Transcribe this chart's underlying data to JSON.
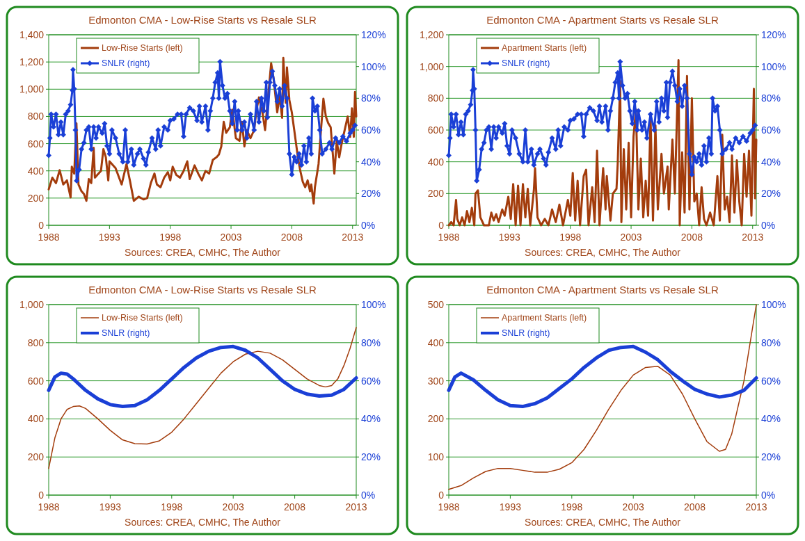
{
  "chart_data": [
    {
      "type": "line",
      "title": "Edmonton CMA - Low-Rise Starts vs Resale SLR",
      "annotations": [
        "Sources: CREA, CMHC, The Author"
      ],
      "xlim": [
        1988,
        2013.3
      ],
      "xticks": [
        1988,
        1993,
        1998,
        2003,
        2008,
        2013
      ],
      "ylim": [
        0,
        1400
      ],
      "yticks": [
        0,
        200,
        400,
        600,
        800,
        {
          "value": 1000,
          "label": "1,000"
        },
        {
          "value": 1200,
          "label": "1,200"
        },
        {
          "value": 1400,
          "label": "1,400"
        }
      ],
      "y2lim": [
        0,
        120
      ],
      "y2ticks": [
        {
          "value": 0,
          "label": "0%"
        },
        {
          "value": 20,
          "label": "20%"
        },
        {
          "value": 40,
          "label": "40%"
        },
        {
          "value": 60,
          "label": "60%"
        },
        {
          "value": 80,
          "label": "80%"
        },
        {
          "value": 100,
          "label": "100%"
        },
        {
          "value": 120,
          "label": "120%"
        }
      ],
      "grid": "y",
      "legend": "top left",
      "series": [
        {
          "name": "Low-Rise Starts (left)",
          "color": "#a33c0c",
          "marker": "none",
          "x": [
            1988.0,
            1988.3,
            1988.6,
            1988.9,
            1989.2,
            1989.5,
            1989.8,
            1989.9,
            1990.1,
            1990.28,
            1990.45,
            1990.7,
            1990.9,
            1991.1,
            1991.3,
            1991.5,
            1991.7,
            1991.8,
            1992.0,
            1992.3,
            1992.5,
            1992.7,
            1992.9,
            1993.0,
            1993.5,
            1994.0,
            1994.4,
            1994.7,
            1995.0,
            1995.4,
            1995.8,
            1996.1,
            1996.4,
            1996.7,
            1996.9,
            1997.2,
            1997.5,
            1997.8,
            1998.0,
            1998.2,
            1998.5,
            1998.8,
            1999.1,
            1999.4,
            1999.6,
            2000.0,
            2000.3,
            2000.6,
            2000.9,
            2001.2,
            2001.5,
            2001.8,
            2002.0,
            2002.2,
            2002.4,
            2002.6,
            2002.9,
            2003.1,
            2003.4,
            2003.7,
            2003.9,
            2004.1,
            2004.3,
            2004.6,
            2004.9,
            2005.1,
            2005.3,
            2005.6,
            2005.8,
            2006.0,
            2006.3,
            2006.5,
            2006.8,
            2007.0,
            2007.2,
            2007.3,
            2007.5,
            2007.6,
            2007.8,
            2008.0,
            2008.2,
            2008.5,
            2008.7,
            2008.9,
            2009.1,
            2009.3,
            2009.5,
            2009.6,
            2009.8,
            2009.9,
            2010.2,
            2010.4,
            2010.6,
            2010.8,
            2011.0,
            2011.2,
            2011.5,
            2011.7,
            2011.9,
            2012.1,
            2012.3,
            2012.6,
            2012.8,
            2012.95,
            2013.1,
            2013.2,
            2013.3
          ],
          "values": [
            264,
            350,
            310,
            405,
            300,
            330,
            205,
            430,
            380,
            750,
            300,
            250,
            230,
            180,
            340,
            310,
            570,
            350,
            370,
            400,
            560,
            500,
            330,
            470,
            420,
            300,
            450,
            320,
            180,
            210,
            190,
            200,
            310,
            380,
            300,
            280,
            350,
            390,
            330,
            430,
            370,
            350,
            400,
            470,
            340,
            440,
            380,
            330,
            400,
            380,
            480,
            500,
            520,
            580,
            760,
            680,
            720,
            850,
            640,
            620,
            760,
            580,
            700,
            640,
            700,
            850,
            940,
            820,
            700,
            890,
            1190,
            1080,
            830,
            950,
            790,
            1230,
            900,
            1160,
            920,
            830,
            700,
            500,
            400,
            320,
            280,
            330,
            250,
            300,
            160,
            280,
            450,
            700,
            930,
            800,
            750,
            720,
            380,
            620,
            500,
            600,
            680,
            800,
            650,
            860,
            650,
            980,
            800
          ]
        },
        {
          "name": "SNLR (right)",
          "color": "#1a3fd6",
          "axis": "y2",
          "marker": "diamond",
          "x": [
            1988.0,
            1988.1,
            1988.2,
            1988.4,
            1988.6,
            1988.8,
            1989.0,
            1989.2,
            1989.4,
            1989.6,
            1989.8,
            1989.95,
            1990.0,
            1990.1,
            1990.2,
            1990.3,
            1990.5,
            1990.7,
            1990.9,
            1991.1,
            1991.3,
            1991.5,
            1991.7,
            1991.9,
            1992.1,
            1992.4,
            1992.6,
            1992.8,
            1993.0,
            1993.2,
            1993.5,
            1993.8,
            1994.1,
            1994.3,
            1994.5,
            1994.8,
            1995.0,
            1995.3,
            1995.5,
            1995.8,
            1996.0,
            1996.2,
            1996.5,
            1996.8,
            1997.0,
            1997.2,
            1997.5,
            1997.8,
            1998.0,
            1998.3,
            1998.6,
            1998.9,
            1999.1,
            1999.3,
            1999.6,
            1999.9,
            2000.2,
            2000.4,
            2000.6,
            2000.9,
            2001.1,
            2001.3,
            2001.5,
            2001.7,
            2001.9,
            2002.0,
            2002.1,
            2002.3,
            2002.5,
            2002.7,
            2002.9,
            2003.1,
            2003.3,
            2003.5,
            2003.6,
            2003.9,
            2004.1,
            2004.3,
            2004.6,
            2004.9,
            2005.1,
            2005.3,
            2005.5,
            2005.7,
            2005.9,
            2006.0,
            2006.2,
            2006.4,
            2006.6,
            2006.8,
            2007.0,
            2007.2,
            2007.4,
            2007.6,
            2007.8,
            2008.0,
            2008.2,
            2008.4,
            2008.6,
            2008.8,
            2009.0,
            2009.2,
            2009.4,
            2009.6,
            2009.7,
            2009.9,
            2010.1,
            2010.3,
            2010.5,
            2010.8,
            2011.1,
            2011.3,
            2011.6,
            2011.9,
            2012.2,
            2012.5,
            2012.8,
            2013.0,
            2013.2
          ],
          "values": [
            44,
            55,
            70,
            62,
            70,
            57,
            65,
            57,
            70,
            72,
            76,
            85,
            98,
            86,
            60,
            28,
            35,
            48,
            52,
            60,
            62,
            48,
            62,
            55,
            62,
            58,
            64,
            50,
            45,
            60,
            55,
            45,
            40,
            60,
            40,
            48,
            38,
            45,
            48,
            42,
            38,
            46,
            55,
            48,
            60,
            50,
            62,
            60,
            66,
            67,
            70,
            70,
            56,
            70,
            74,
            72,
            66,
            75,
            65,
            75,
            60,
            72,
            80,
            90,
            96,
            80,
            103,
            88,
            80,
            83,
            72,
            64,
            78,
            60,
            72,
            60,
            65,
            55,
            70,
            60,
            78,
            65,
            80,
            72,
            90,
            68,
            90,
            97,
            88,
            78,
            86,
            75,
            88,
            80,
            45,
            32,
            43,
            40,
            45,
            38,
            50,
            40,
            55,
            45,
            80,
            72,
            75,
            60,
            45,
            48,
            52,
            48,
            55,
            52,
            56,
            53,
            58,
            60,
            63
          ]
        }
      ]
    },
    {
      "type": "line",
      "title": "Edmonton CMA - Apartment Starts vs Resale SLR",
      "annotations": [
        "Sources: CREA, CMHC, The Author"
      ],
      "xlim": [
        1988,
        2013.3
      ],
      "xticks": [
        1988,
        1993,
        1998,
        2003,
        2008,
        2013
      ],
      "ylim": [
        0,
        1200
      ],
      "yticks": [
        0,
        200,
        400,
        600,
        800,
        {
          "value": 1000,
          "label": "1,000"
        },
        {
          "value": 1200,
          "label": "1,200"
        }
      ],
      "y2lim": [
        0,
        120
      ],
      "y2ticks": [
        {
          "value": 0,
          "label": "0%"
        },
        {
          "value": 20,
          "label": "20%"
        },
        {
          "value": 40,
          "label": "40%"
        },
        {
          "value": 60,
          "label": "60%"
        },
        {
          "value": 80,
          "label": "80%"
        },
        {
          "value": 100,
          "label": "100%"
        },
        {
          "value": 120,
          "label": "120%"
        }
      ],
      "grid": "y",
      "legend": "top left",
      "series": [
        {
          "name": "Apartment Starts (left)",
          "color": "#a33c0c",
          "marker": "none",
          "x": [
            1988.0,
            1988.2,
            1988.4,
            1988.6,
            1988.7,
            1988.9,
            1989.1,
            1989.3,
            1989.5,
            1989.7,
            1989.9,
            1990.1,
            1990.2,
            1990.4,
            1990.6,
            1990.9,
            1991.3,
            1991.5,
            1991.7,
            1991.9,
            1992.1,
            1992.4,
            1992.6,
            1992.9,
            1993.1,
            1993.3,
            1993.5,
            1993.7,
            1993.9,
            1994.1,
            1994.3,
            1994.5,
            1994.7,
            1995.0,
            1995.1,
            1995.3,
            1995.6,
            1995.9,
            1996.2,
            1996.5,
            1996.8,
            1997.1,
            1997.4,
            1997.8,
            1998.0,
            1998.2,
            1998.4,
            1998.6,
            1998.8,
            1999.1,
            1999.3,
            1999.5,
            1999.8,
            2000.0,
            2000.2,
            2000.4,
            2000.7,
            2000.9,
            2001.0,
            2001.3,
            2001.5,
            2001.8,
            2001.9,
            2002.1,
            2002.2,
            2002.4,
            2002.6,
            2002.8,
            2003.0,
            2003.2,
            2003.4,
            2003.6,
            2003.8,
            2004.0,
            2004.2,
            2004.4,
            2004.6,
            2004.8,
            2005.0,
            2005.2,
            2005.5,
            2005.7,
            2006.0,
            2006.1,
            2006.4,
            2006.6,
            2006.9,
            2007.0,
            2007.2,
            2007.4,
            2007.6,
            2007.8,
            2008.0,
            2008.2,
            2008.4,
            2008.6,
            2008.8,
            2009.0,
            2009.2,
            2009.5,
            2009.8,
            2010.1,
            2010.3,
            2010.5,
            2010.7,
            2010.9,
            2011.1,
            2011.3,
            2011.5,
            2011.7,
            2011.9,
            2012.1,
            2012.3,
            2012.5,
            2012.7,
            2012.9,
            2013.0,
            2013.1,
            2013.2,
            2013.3
          ],
          "values": [
            0,
            20,
            0,
            160,
            40,
            0,
            50,
            0,
            90,
            20,
            110,
            0,
            200,
            220,
            50,
            0,
            0,
            80,
            30,
            70,
            20,
            100,
            60,
            180,
            40,
            260,
            0,
            250,
            0,
            260,
            50,
            230,
            0,
            220,
            360,
            50,
            0,
            40,
            0,
            100,
            20,
            130,
            0,
            160,
            60,
            330,
            30,
            280,
            0,
            310,
            350,
            0,
            240,
            20,
            470,
            0,
            360,
            100,
            310,
            30,
            200,
            230,
            390,
            910,
            20,
            480,
            100,
            520,
            50,
            560,
            730,
            100,
            420,
            50,
            280,
            60,
            680,
            30,
            630,
            100,
            450,
            200,
            370,
            100,
            540,
            200,
            1040,
            0,
            460,
            80,
            940,
            100,
            800,
            150,
            200,
            0,
            240,
            40,
            0,
            80,
            0,
            310,
            30,
            570,
            100,
            180,
            20,
            440,
            80,
            410,
            150,
            0,
            450,
            180,
            470,
            60,
            480,
            860,
            170,
            540
          ]
        },
        {
          "name": "SNLR (right)",
          "color": "#1a3fd6",
          "axis": "y2",
          "marker": "diamond",
          "x": [
            1988.0,
            1988.1,
            1988.2,
            1988.4,
            1988.6,
            1988.8,
            1989.0,
            1989.2,
            1989.4,
            1989.6,
            1989.8,
            1989.95,
            1990.0,
            1990.1,
            1990.2,
            1990.3,
            1990.5,
            1990.7,
            1990.9,
            1991.1,
            1991.3,
            1991.5,
            1991.7,
            1991.9,
            1992.1,
            1992.4,
            1992.6,
            1992.8,
            1993.0,
            1993.2,
            1993.5,
            1993.8,
            1994.1,
            1994.3,
            1994.5,
            1994.8,
            1995.0,
            1995.3,
            1995.5,
            1995.8,
            1996.0,
            1996.2,
            1996.5,
            1996.8,
            1997.0,
            1997.2,
            1997.5,
            1997.8,
            1998.0,
            1998.3,
            1998.6,
            1998.9,
            1999.1,
            1999.3,
            1999.6,
            1999.9,
            2000.2,
            2000.4,
            2000.6,
            2000.9,
            2001.1,
            2001.3,
            2001.5,
            2001.7,
            2001.9,
            2002.0,
            2002.1,
            2002.3,
            2002.5,
            2002.7,
            2002.9,
            2003.1,
            2003.3,
            2003.5,
            2003.6,
            2003.9,
            2004.1,
            2004.3,
            2004.6,
            2004.9,
            2005.1,
            2005.3,
            2005.5,
            2005.7,
            2005.9,
            2006.0,
            2006.2,
            2006.4,
            2006.6,
            2006.8,
            2007.0,
            2007.2,
            2007.4,
            2007.6,
            2007.8,
            2008.0,
            2008.2,
            2008.4,
            2008.6,
            2008.8,
            2009.0,
            2009.2,
            2009.4,
            2009.6,
            2009.7,
            2009.9,
            2010.1,
            2010.3,
            2010.5,
            2010.8,
            2011.1,
            2011.3,
            2011.6,
            2011.9,
            2012.2,
            2012.5,
            2012.8,
            2013.0,
            2013.2
          ],
          "values": [
            44,
            55,
            70,
            62,
            70,
            57,
            65,
            57,
            70,
            72,
            76,
            85,
            98,
            86,
            60,
            28,
            35,
            48,
            52,
            60,
            62,
            48,
            62,
            55,
            62,
            58,
            64,
            50,
            45,
            60,
            55,
            45,
            40,
            60,
            40,
            48,
            38,
            45,
            48,
            42,
            38,
            46,
            55,
            48,
            60,
            50,
            62,
            60,
            66,
            67,
            70,
            70,
            56,
            70,
            74,
            72,
            66,
            75,
            65,
            75,
            60,
            72,
            80,
            90,
            96,
            80,
            103,
            88,
            80,
            83,
            72,
            64,
            78,
            60,
            72,
            60,
            65,
            55,
            70,
            60,
            78,
            65,
            80,
            72,
            90,
            68,
            90,
            97,
            88,
            78,
            86,
            75,
            88,
            80,
            45,
            32,
            43,
            40,
            45,
            38,
            50,
            40,
            55,
            45,
            80,
            72,
            75,
            60,
            45,
            48,
            52,
            48,
            55,
            52,
            56,
            53,
            58,
            60,
            63
          ]
        }
      ]
    },
    {
      "type": "line",
      "title": "Edmonton CMA - Low-Rise Starts vs Resale SLR",
      "annotations": [
        "Sources: CREA, CMHC, The Author"
      ],
      "xlim": [
        1988,
        2013
      ],
      "xticks": [
        1988,
        1993,
        1998,
        2003,
        2008,
        2013
      ],
      "ylim": [
        0,
        1000
      ],
      "yticks": [
        0,
        200,
        400,
        600,
        800,
        {
          "value": 1000,
          "label": "1,000"
        }
      ],
      "y2lim": [
        0,
        100
      ],
      "y2ticks": [
        {
          "value": 0,
          "label": "0%"
        },
        {
          "value": 20,
          "label": "20%"
        },
        {
          "value": 40,
          "label": "40%"
        },
        {
          "value": 60,
          "label": "60%"
        },
        {
          "value": 80,
          "label": "80%"
        },
        {
          "value": 100,
          "label": "100%"
        }
      ],
      "grid": "y",
      "legend": "top left",
      "series": [
        {
          "name": "Low-Rise Starts (left)",
          "color": "#a33c0c",
          "x": [
            1988,
            1988.5,
            1989,
            1989.5,
            1990,
            1990.5,
            1991,
            1992,
            1993,
            1994,
            1995,
            1996,
            1997,
            1998,
            1999,
            2000,
            2001,
            2002,
            2003,
            2004,
            2005,
            2006,
            2007,
            2008,
            2009,
            2010,
            2010.5,
            2011,
            2011.5,
            2012,
            2012.5,
            2013
          ],
          "values": [
            140,
            300,
            400,
            450,
            465,
            468,
            455,
            400,
            340,
            290,
            270,
            268,
            285,
            330,
            400,
            480,
            560,
            640,
            700,
            740,
            755,
            745,
            710,
            660,
            610,
            575,
            568,
            575,
            610,
            680,
            770,
            880
          ]
        },
        {
          "name": "SNLR (right)",
          "color": "#1a3fd6",
          "axis": "y2",
          "x": [
            1988,
            1988.5,
            1989,
            1989.5,
            1990,
            1991,
            1992,
            1993,
            1994,
            1995,
            1996,
            1997,
            1998,
            1999,
            2000,
            2001,
            2002,
            2003,
            2004,
            2005,
            2006,
            2007,
            2008,
            2009,
            2010,
            2011,
            2012,
            2013
          ],
          "values": [
            55,
            62,
            64,
            63.5,
            61,
            55,
            50.5,
            47.5,
            46.5,
            47,
            50,
            55,
            61,
            67,
            72,
            75.5,
            77.5,
            78,
            76,
            72,
            66,
            60,
            55.5,
            53,
            52,
            52.5,
            55.5,
            61.5
          ]
        }
      ]
    },
    {
      "type": "line",
      "title": "Edmonton CMA - Apartment Starts vs Resale SLR",
      "annotations": [
        "Sources: CREA, CMHC, The Author"
      ],
      "xlim": [
        1988,
        2013
      ],
      "xticks": [
        1988,
        1993,
        1998,
        2003,
        2008,
        2013
      ],
      "ylim": [
        0,
        500
      ],
      "yticks": [
        0,
        100,
        200,
        300,
        400,
        500
      ],
      "y2lim": [
        0,
        100
      ],
      "y2ticks": [
        {
          "value": 0,
          "label": "0%"
        },
        {
          "value": 20,
          "label": "20%"
        },
        {
          "value": 40,
          "label": "40%"
        },
        {
          "value": 60,
          "label": "60%"
        },
        {
          "value": 80,
          "label": "80%"
        },
        {
          "value": 100,
          "label": "100%"
        }
      ],
      "grid": "y",
      "legend": "top left",
      "series": [
        {
          "name": "Apartment Starts (left)",
          "color": "#a33c0c",
          "x": [
            1988,
            1989,
            1990,
            1991,
            1992,
            1993,
            1994,
            1995,
            1996,
            1997,
            1998,
            1999,
            2000,
            2001,
            2002,
            2003,
            2004,
            2005,
            2006,
            2007,
            2008,
            2009,
            2010,
            2010.5,
            2011,
            2012,
            2013
          ],
          "values": [
            15,
            25,
            45,
            62,
            70,
            70,
            65,
            60,
            60,
            68,
            85,
            120,
            170,
            225,
            275,
            315,
            335,
            338,
            315,
            265,
            200,
            140,
            115,
            120,
            160,
            300,
            500
          ]
        },
        {
          "name": "SNLR (right)",
          "color": "#1a3fd6",
          "axis": "y2",
          "x": [
            1988,
            1988.5,
            1989,
            1990,
            1991,
            1992,
            1993,
            1994,
            1995,
            1996,
            1997,
            1998,
            1999,
            2000,
            2001,
            2002,
            2003,
            2004,
            2005,
            2006,
            2007,
            2008,
            2009,
            2010,
            2011,
            2012,
            2013
          ],
          "values": [
            55,
            62,
            64,
            60.5,
            55,
            50,
            47,
            46.5,
            48,
            51,
            56,
            61,
            67,
            72,
            76,
            77.5,
            78,
            75,
            71,
            65,
            60,
            55.5,
            53,
            51.5,
            52.5,
            55,
            61.5
          ]
        }
      ]
    }
  ]
}
